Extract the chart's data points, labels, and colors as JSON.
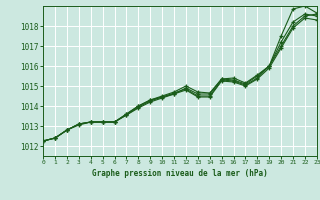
{
  "title": "Graphe pression niveau de la mer (hPa)",
  "background_color": "#cce8e0",
  "grid_color": "#ffffff",
  "line_color": "#1a5c1a",
  "xlim": [
    0,
    23
  ],
  "ylim": [
    1011.5,
    1019.0
  ],
  "yticks": [
    1012,
    1013,
    1014,
    1015,
    1016,
    1017,
    1018
  ],
  "xticks": [
    0,
    1,
    2,
    3,
    4,
    5,
    6,
    7,
    8,
    9,
    10,
    11,
    12,
    13,
    14,
    15,
    16,
    17,
    18,
    19,
    20,
    21,
    22,
    23
  ],
  "series": [
    [
      1012.25,
      1012.4,
      1012.8,
      1013.1,
      1013.2,
      1013.2,
      1013.2,
      1013.6,
      1014.0,
      1014.3,
      1014.45,
      1014.6,
      1014.9,
      1014.6,
      1014.6,
      1015.35,
      1015.3,
      1015.1,
      1015.5,
      1016.0,
      1017.0,
      1018.0,
      1018.5,
      1018.6
    ],
    [
      1012.25,
      1012.4,
      1012.8,
      1013.1,
      1013.2,
      1013.2,
      1013.2,
      1013.55,
      1013.95,
      1014.25,
      1014.45,
      1014.65,
      1014.85,
      1014.5,
      1014.5,
      1015.3,
      1015.25,
      1015.05,
      1015.4,
      1016.0,
      1017.2,
      1018.2,
      1018.6,
      1018.5
    ],
    [
      1012.25,
      1012.4,
      1012.8,
      1013.05,
      1013.2,
      1013.2,
      1013.2,
      1013.55,
      1013.9,
      1014.2,
      1014.4,
      1014.6,
      1014.8,
      1014.45,
      1014.45,
      1015.25,
      1015.2,
      1015.0,
      1015.35,
      1015.9,
      1016.9,
      1017.9,
      1018.4,
      1018.3
    ],
    [
      1012.25,
      1012.4,
      1012.8,
      1013.1,
      1013.2,
      1013.2,
      1013.2,
      1013.6,
      1014.0,
      1014.3,
      1014.5,
      1014.7,
      1015.0,
      1014.7,
      1014.65,
      1015.35,
      1015.4,
      1015.15,
      1015.55,
      1016.0,
      1017.5,
      1018.85,
      1019.0,
      1018.65
    ]
  ]
}
